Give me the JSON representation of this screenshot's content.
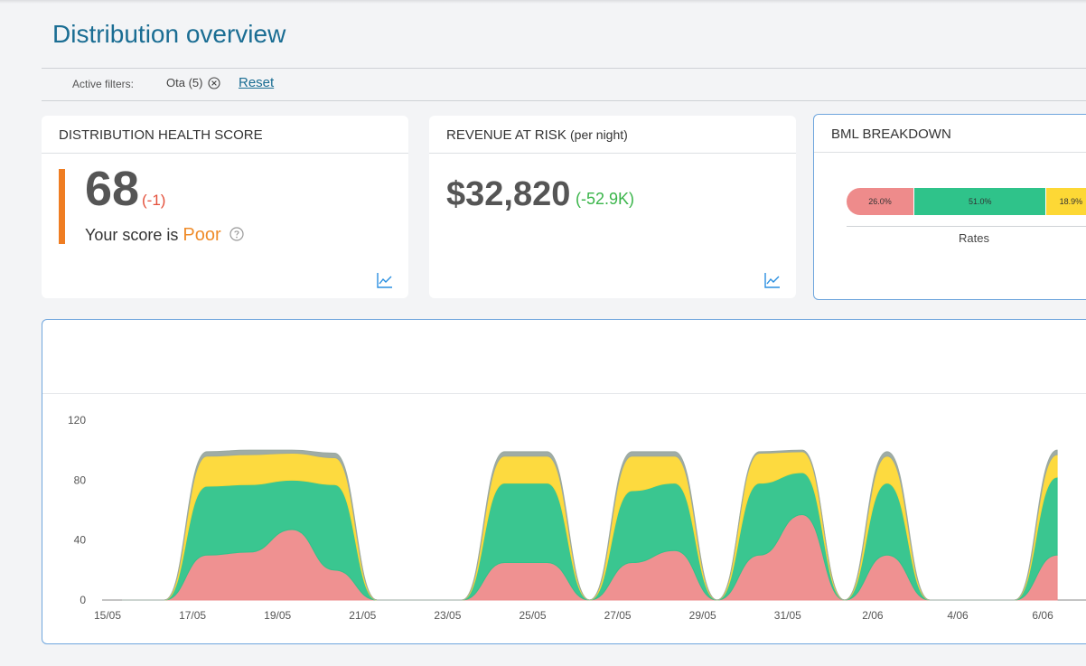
{
  "page": {
    "title": "Distribution overview"
  },
  "filters": {
    "label": "Active filters:",
    "chip_label": "Ota (5)",
    "reset_label": "Reset"
  },
  "health": {
    "title": "DISTRIBUTION HEALTH SCORE",
    "score": "68",
    "delta": "(-1)",
    "text_prefix": "Your score is",
    "status": "Poor",
    "accent_color": "#ef7d22"
  },
  "revenue": {
    "title": "REVENUE AT RISK",
    "title_suffix": "(per night)",
    "value": "$32,820",
    "delta": "(-52.9K)"
  },
  "bml": {
    "title": "BML BREAKDOWN",
    "category": "Rates",
    "segments": [
      {
        "label": "26.0%",
        "value": 26.0,
        "color": "#ee8b8b"
      },
      {
        "label": "51.0%",
        "value": 51.0,
        "color": "#2fc38a"
      },
      {
        "label": "18.9%",
        "value": 18.9,
        "color": "#fdd835"
      }
    ]
  },
  "chart_data": {
    "type": "area",
    "stacked": true,
    "x": [
      "15/05",
      "16/05",
      "17/05",
      "18/05",
      "19/05",
      "20/05",
      "21/05",
      "22/05",
      "23/05",
      "24/05",
      "25/05",
      "26/05",
      "27/05",
      "28/05",
      "29/05",
      "30/05",
      "31/05",
      "1/06",
      "2/06",
      "3/06",
      "4/06",
      "5/06",
      "6/06"
    ],
    "x_tick_labels": [
      "15/05",
      "17/05",
      "19/05",
      "21/05",
      "23/05",
      "25/05",
      "27/05",
      "29/05",
      "31/05",
      "2/06",
      "4/06",
      "6/06"
    ],
    "ylim": [
      0,
      120
    ],
    "y_ticks": [
      0,
      40,
      80,
      120
    ],
    "series": [
      {
        "color": "#ee8b8b",
        "values": [
          0,
          0,
          30,
          32,
          47,
          20,
          0,
          0,
          0,
          25,
          25,
          0,
          25,
          33,
          0,
          30,
          57,
          0,
          30,
          0,
          0,
          0,
          30
        ]
      },
      {
        "color": "#2fc38a",
        "values": [
          0,
          0,
          46,
          45,
          33,
          57,
          0,
          0,
          0,
          53,
          53,
          0,
          48,
          45,
          0,
          48,
          28,
          0,
          48,
          0,
          0,
          0,
          52
        ]
      },
      {
        "color": "#fdd835",
        "values": [
          0,
          0,
          20,
          20,
          18,
          18,
          0,
          0,
          0,
          18,
          18,
          0,
          23,
          18,
          0,
          20,
          14,
          0,
          18,
          0,
          0,
          0,
          15
        ]
      },
      {
        "color": "#9aa8a0",
        "values": [
          0,
          0,
          3,
          3,
          2,
          3,
          0,
          0,
          0,
          3,
          3,
          0,
          3,
          3,
          0,
          1,
          1,
          0,
          3,
          0,
          0,
          0,
          3
        ]
      }
    ]
  }
}
